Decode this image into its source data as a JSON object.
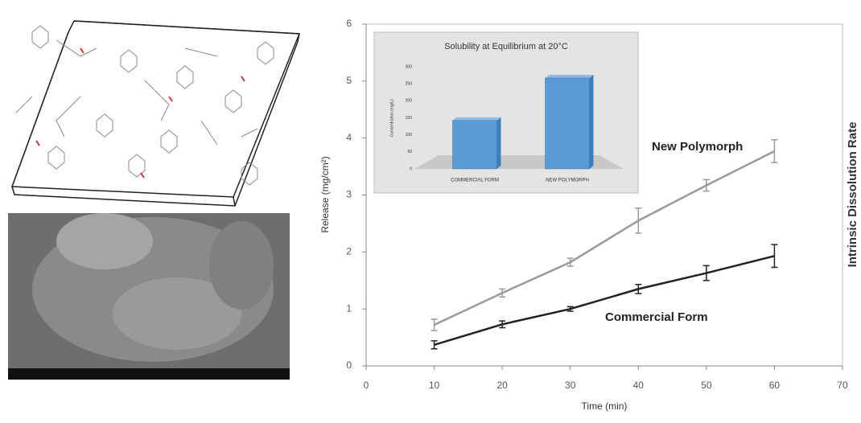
{
  "chart_data": [
    {
      "type": "line",
      "xlabel": "Time (min)",
      "ylabel": "Release (mg/cm²)",
      "y2label": "Intrinsic Dissolution Rate",
      "x": [
        10,
        20,
        30,
        40,
        50,
        60
      ],
      "series": [
        {
          "name": "New Polymorph",
          "color": "#9a9a9a",
          "values": [
            0.72,
            1.28,
            1.82,
            2.55,
            3.17,
            3.77
          ],
          "errors": [
            0.1,
            0.07,
            0.07,
            0.22,
            0.1,
            0.2
          ]
        },
        {
          "name": "Commercial Form",
          "color": "#222222",
          "values": [
            0.37,
            0.73,
            1.0,
            1.35,
            1.63,
            1.93
          ],
          "errors": [
            0.07,
            0.06,
            0.04,
            0.08,
            0.13,
            0.2
          ]
        }
      ],
      "xlim": [
        0,
        70
      ],
      "xticks": [
        0,
        10,
        20,
        30,
        40,
        50,
        60,
        70
      ],
      "ylim": [
        0,
        6
      ],
      "yticks": [
        0,
        1,
        2,
        3,
        4,
        5,
        6
      ]
    },
    {
      "type": "bar",
      "title": "Solubility at Equilibrium at 20°C",
      "ylabel": "Concentration (mg/L)",
      "categories": [
        "COMMERCIAL FORM",
        "NEW POLYMORPH"
      ],
      "values": [
        142,
        267
      ],
      "color": "#5b9bd5",
      "ylim": [
        0,
        300
      ],
      "yticks": [
        0,
        50,
        100,
        150,
        200,
        250,
        300
      ]
    }
  ]
}
